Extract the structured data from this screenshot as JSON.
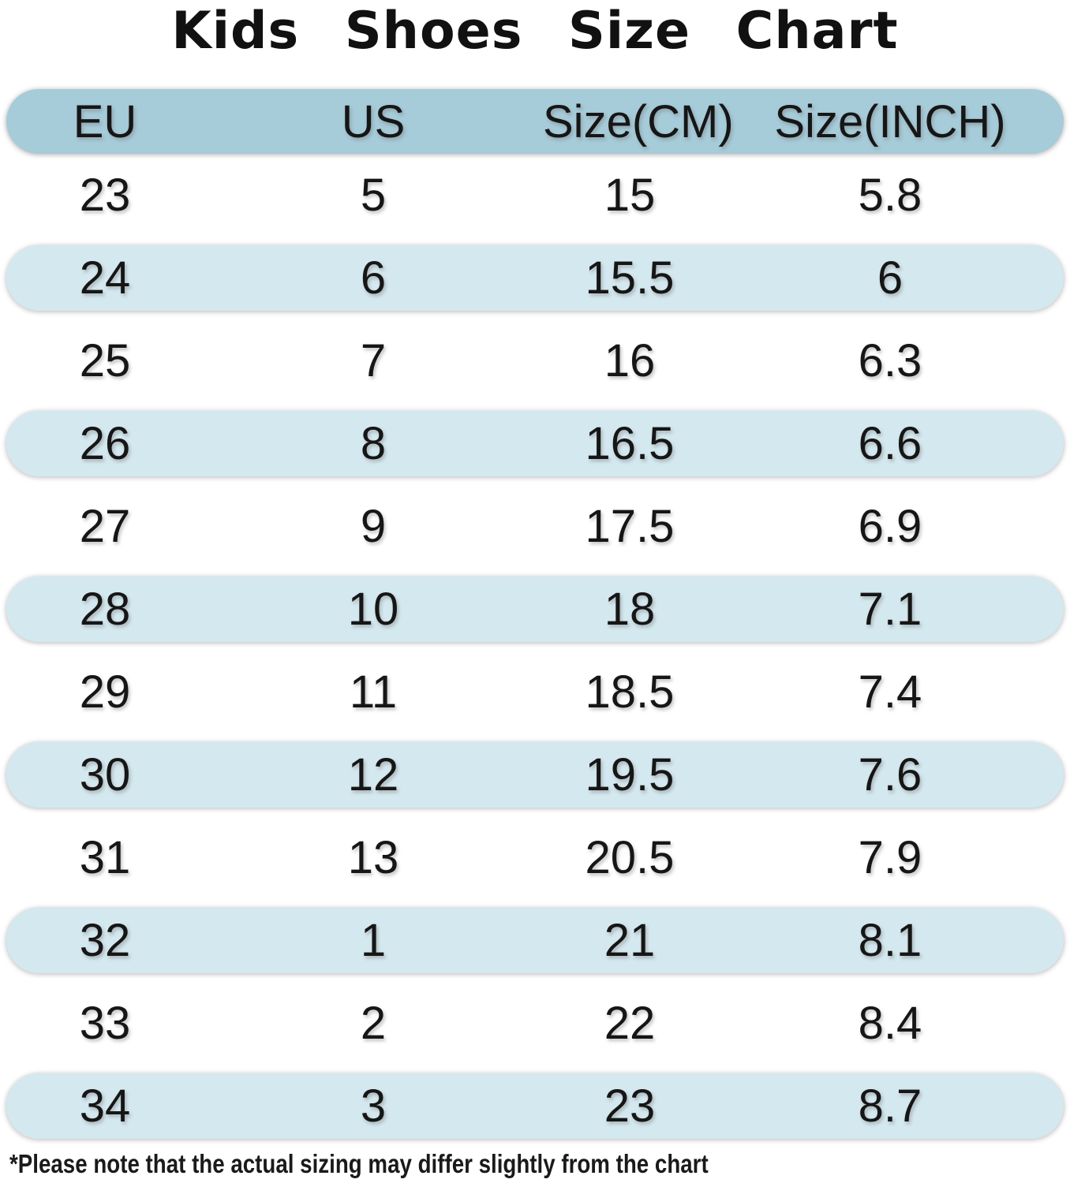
{
  "title": "Kids Shoes Size Chart",
  "footnote": "*Please note that the actual sizing may differ slightly from the chart",
  "colors": {
    "header_bg": "#a6cbd9",
    "row_alt_bg": "#d4e8ef",
    "text": "#161616"
  },
  "table": {
    "columns": [
      "EU",
      "US",
      "Size(CM)",
      "Size(INCH)"
    ],
    "rows": [
      [
        "23",
        "5",
        "15",
        "5.8"
      ],
      [
        "24",
        "6",
        "15.5",
        "6"
      ],
      [
        "25",
        "7",
        "16",
        "6.3"
      ],
      [
        "26",
        "8",
        "16.5",
        "6.6"
      ],
      [
        "27",
        "9",
        "17.5",
        "6.9"
      ],
      [
        "28",
        "10",
        "18",
        "7.1"
      ],
      [
        "29",
        "11",
        "18.5",
        "7.4"
      ],
      [
        "30",
        "12",
        "19.5",
        "7.6"
      ],
      [
        "31",
        "13",
        "20.5",
        "7.9"
      ],
      [
        "32",
        "1",
        "21",
        "8.1"
      ],
      [
        "33",
        "2",
        "22",
        "8.4"
      ],
      [
        "34",
        "3",
        "23",
        "8.7"
      ]
    ]
  },
  "chart_data": {
    "type": "table",
    "title": "Kids Shoes Size Chart",
    "columns": [
      "EU",
      "US",
      "Size(CM)",
      "Size(INCH)"
    ],
    "rows": [
      [
        23,
        5,
        15,
        5.8
      ],
      [
        24,
        6,
        15.5,
        6
      ],
      [
        25,
        7,
        16,
        6.3
      ],
      [
        26,
        8,
        16.5,
        6.6
      ],
      [
        27,
        9,
        17.5,
        6.9
      ],
      [
        28,
        10,
        18,
        7.1
      ],
      [
        29,
        11,
        18.5,
        7.4
      ],
      [
        30,
        12,
        19.5,
        7.6
      ],
      [
        31,
        13,
        20.5,
        7.9
      ],
      [
        32,
        1,
        21,
        8.1
      ],
      [
        33,
        2,
        22,
        8.4
      ],
      [
        34,
        3,
        23,
        8.7
      ]
    ],
    "note": "*Please note that the actual sizing may differ slightly from the chart"
  }
}
